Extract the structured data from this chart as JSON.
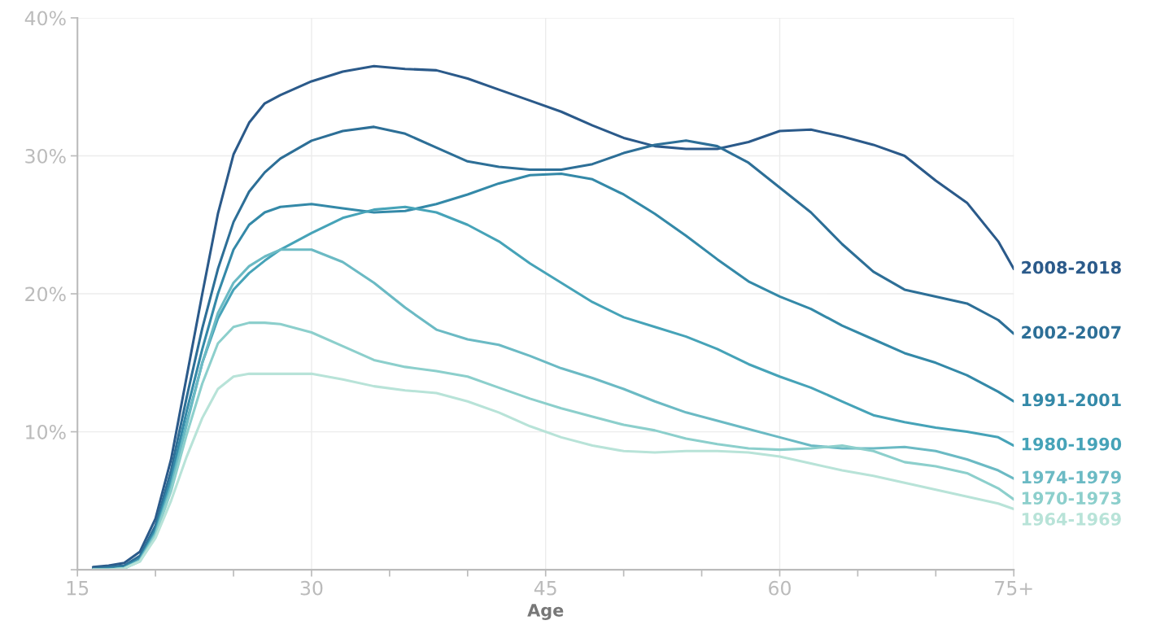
{
  "chart_data": {
    "type": "line",
    "xlabel": "Age",
    "x": [
      16,
      17,
      18,
      19,
      20,
      21,
      22,
      23,
      24,
      25,
      26,
      27,
      28,
      30,
      32,
      34,
      36,
      38,
      40,
      42,
      44,
      46,
      48,
      50,
      52,
      54,
      56,
      58,
      60,
      62,
      64,
      66,
      68,
      70,
      72,
      74,
      75
    ],
    "series": [
      {
        "name": "2008-2018",
        "color": "#2b5a8a",
        "values": [
          0.2,
          0.3,
          0.5,
          1.3,
          3.7,
          8.0,
          14.0,
          20.0,
          25.8,
          30.1,
          32.4,
          33.8,
          34.4,
          35.4,
          36.1,
          36.5,
          36.3,
          36.2,
          35.6,
          34.8,
          34.0,
          33.2,
          32.2,
          31.3,
          30.7,
          30.5,
          30.5,
          31.0,
          31.8,
          31.9,
          31.4,
          30.8,
          30.0,
          28.2,
          26.6,
          23.8,
          21.8
        ]
      },
      {
        "name": "2002-2007",
        "color": "#2d6f97",
        "values": [
          0.1,
          0.2,
          0.3,
          1.0,
          3.2,
          7.2,
          12.5,
          17.5,
          21.8,
          25.2,
          27.4,
          28.8,
          29.8,
          31.1,
          31.8,
          32.1,
          31.6,
          30.6,
          29.6,
          29.2,
          29.0,
          29.0,
          29.4,
          30.2,
          30.8,
          31.1,
          30.7,
          29.5,
          27.7,
          25.9,
          23.6,
          21.6,
          20.3,
          19.8,
          19.3,
          18.1,
          17.1
        ]
      },
      {
        "name": "1991-2001",
        "color": "#3489a8",
        "values": [
          0.0,
          0.1,
          0.2,
          0.8,
          2.9,
          6.6,
          11.5,
          16.0,
          20.0,
          23.2,
          25.0,
          25.9,
          26.3,
          26.5,
          26.2,
          25.9,
          26.0,
          26.5,
          27.2,
          28.0,
          28.6,
          28.7,
          28.3,
          27.2,
          25.8,
          24.2,
          22.5,
          20.9,
          19.8,
          18.9,
          17.7,
          16.7,
          15.7,
          15.0,
          14.1,
          12.9,
          12.2
        ]
      },
      {
        "name": "1980-1990",
        "color": "#46a3b8",
        "values": [
          0.0,
          0.0,
          0.1,
          0.7,
          2.7,
          6.2,
          10.7,
          15.0,
          18.2,
          20.3,
          21.5,
          22.4,
          23.2,
          24.4,
          25.5,
          26.1,
          26.3,
          25.9,
          25.0,
          23.8,
          22.2,
          20.8,
          19.4,
          18.3,
          17.6,
          16.9,
          16.0,
          14.9,
          14.0,
          13.2,
          12.2,
          11.2,
          10.7,
          10.3,
          10.0,
          9.6,
          9.0
        ]
      },
      {
        "name": "1974-1979",
        "color": "#6bbac4",
        "values": [
          0.0,
          0.0,
          0.1,
          0.7,
          2.6,
          6.0,
          10.5,
          15.0,
          18.6,
          20.8,
          22.0,
          22.7,
          23.2,
          23.2,
          22.3,
          20.8,
          19.0,
          17.4,
          16.7,
          16.3,
          15.5,
          14.6,
          13.9,
          13.1,
          12.2,
          11.4,
          10.8,
          10.2,
          9.6,
          9.0,
          8.8,
          8.8,
          8.9,
          8.6,
          8.0,
          7.2,
          6.6
        ]
      },
      {
        "name": "1970-1973",
        "color": "#8ccfcc",
        "values": [
          0.0,
          0.0,
          0.1,
          0.6,
          2.5,
          5.7,
          9.8,
          13.5,
          16.4,
          17.6,
          17.9,
          17.9,
          17.8,
          17.2,
          16.2,
          15.2,
          14.7,
          14.4,
          14.0,
          13.2,
          12.4,
          11.7,
          11.1,
          10.5,
          10.1,
          9.5,
          9.1,
          8.8,
          8.7,
          8.8,
          9.0,
          8.6,
          7.8,
          7.5,
          7.0,
          5.9,
          5.1
        ]
      },
      {
        "name": "1964-1969",
        "color": "#b8e3d8",
        "values": [
          0.0,
          0.0,
          0.1,
          0.6,
          2.3,
          5.0,
          8.2,
          11.0,
          13.1,
          14.0,
          14.2,
          14.2,
          14.2,
          14.2,
          13.8,
          13.3,
          13.0,
          12.8,
          12.2,
          11.4,
          10.4,
          9.6,
          9.0,
          8.6,
          8.5,
          8.6,
          8.6,
          8.5,
          8.2,
          7.7,
          7.2,
          6.8,
          6.3,
          5.8,
          5.3,
          4.8,
          4.4
        ]
      }
    ],
    "xlim": [
      15,
      75
    ],
    "xticks": [
      15,
      {
        "value": 20,
        "label": null
      },
      {
        "value": 25,
        "label": null
      },
      30,
      {
        "value": 35,
        "label": null
      },
      {
        "value": 40,
        "label": null
      },
      45,
      {
        "value": 50,
        "label": null
      },
      {
        "value": 55,
        "label": null
      },
      60,
      {
        "value": 65,
        "label": null
      },
      {
        "value": 70,
        "label": null
      },
      {
        "value": 75,
        "label": "75+"
      }
    ],
    "ylim": [
      0,
      40
    ],
    "yticks": [
      {
        "value": 0,
        "label": null
      },
      {
        "value": 10,
        "label": "10%"
      },
      {
        "value": 20,
        "label": "20%"
      },
      {
        "value": 30,
        "label": "30%"
      },
      {
        "value": 40,
        "label": "40%"
      }
    ],
    "grid": true,
    "legend": false,
    "line_style": "solid",
    "marker": "none"
  }
}
